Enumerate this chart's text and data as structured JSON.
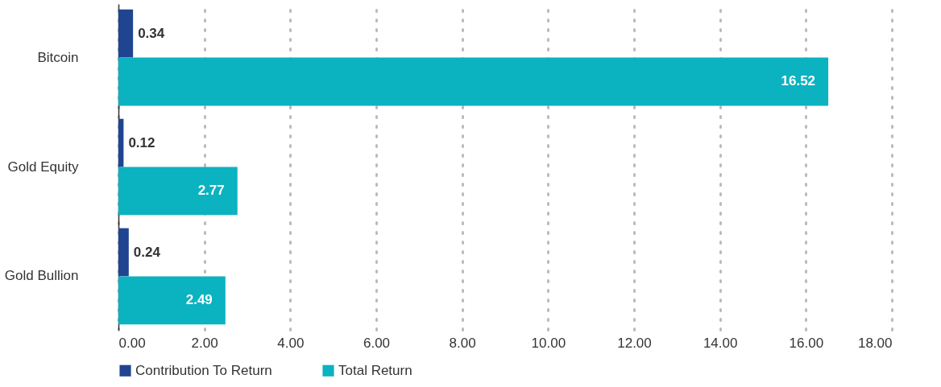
{
  "chart_data": {
    "type": "bar",
    "orientation": "horizontal",
    "categories": [
      "Bitcoin",
      "Gold Equity",
      "Gold Bullion"
    ],
    "series": [
      {
        "name": "Contribution To Return",
        "color": "#1f4591",
        "values": [
          0.34,
          0.12,
          0.24
        ]
      },
      {
        "name": "Total Return",
        "color": "#0bb2c0",
        "values": [
          16.52,
          2.77,
          2.49
        ]
      }
    ],
    "xlim": [
      0,
      18
    ],
    "xticks": [
      {
        "value": 0,
        "label": "0.00"
      },
      {
        "value": 2,
        "label": "2.00"
      },
      {
        "value": 4,
        "label": "4.00"
      },
      {
        "value": 6,
        "label": "6.00"
      },
      {
        "value": 8,
        "label": "8.00"
      },
      {
        "value": 10,
        "label": "10.00"
      },
      {
        "value": 12,
        "label": "12.00"
      },
      {
        "value": 14,
        "label": "14.00"
      },
      {
        "value": 16,
        "label": "16.00"
      },
      {
        "value": 18,
        "label": "18.00"
      }
    ],
    "grid": "x",
    "legend": "bottom",
    "data_labels": true
  }
}
